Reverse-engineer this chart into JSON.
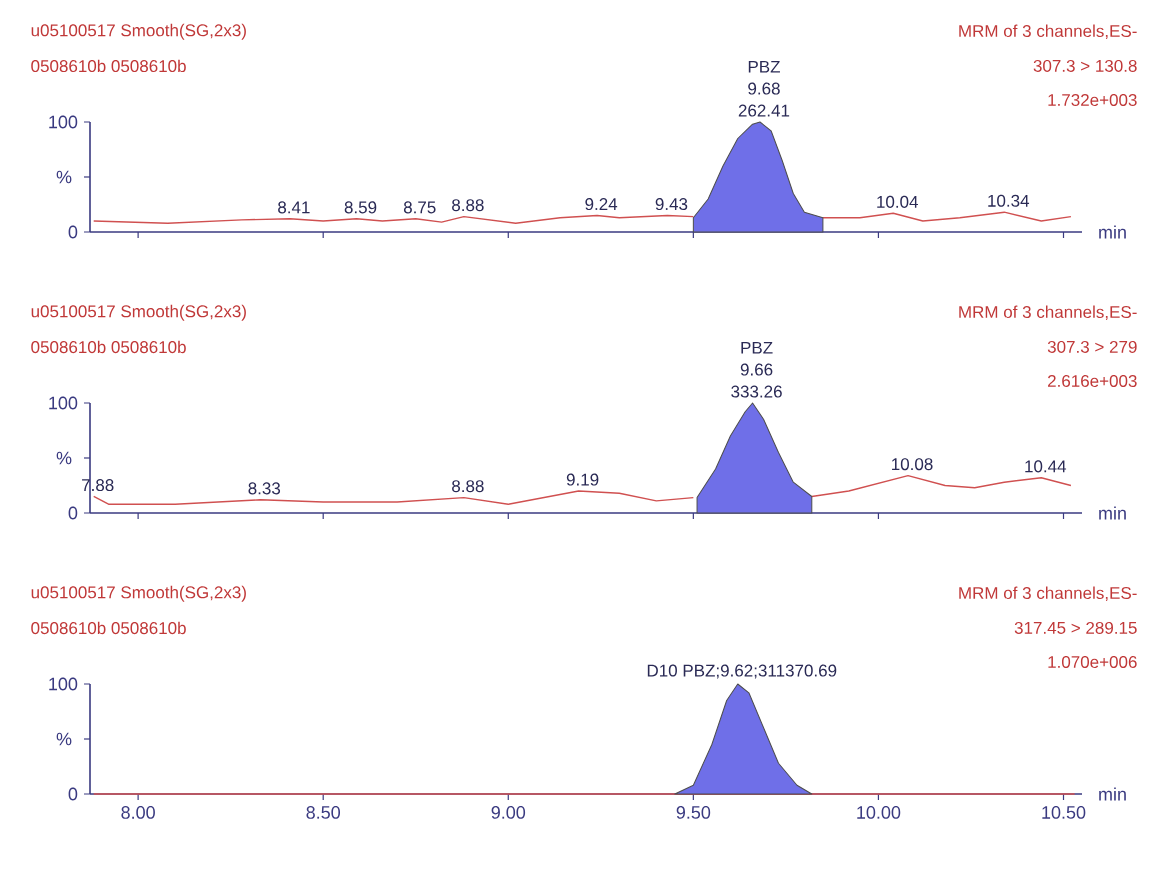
{
  "chart_data": [
    {
      "type": "line",
      "title": "u05100517  Smooth(SG,2x3)",
      "subtitle": "0508610b 0508610b",
      "xlabel": "min",
      "annotations": [
        "MRM of 3 channels,ES-",
        "307.3 > 130.8",
        "1.732e+003",
        {
          "text": "PBZ",
          "x": 9.68,
          "y": 100
        },
        {
          "text": "9.68",
          "x": 9.68,
          "y": 100
        },
        {
          "text": "262.41",
          "x": 9.68,
          "y": 100
        },
        {
          "text": "8.41",
          "x": 8.41,
          "y": 12
        },
        {
          "text": "8.59",
          "x": 8.59,
          "y": 12
        },
        {
          "text": "8.75",
          "x": 8.75,
          "y": 12
        },
        {
          "text": "8.88",
          "x": 8.88,
          "y": 14
        },
        {
          "text": "9.24",
          "x": 9.24,
          "y": 15
        },
        {
          "text": "9.43",
          "x": 9.43,
          "y": 15
        },
        {
          "text": "10.04",
          "x": 10.04,
          "y": 17
        },
        {
          "text": "10.34",
          "x": 10.34,
          "y": 18
        }
      ],
      "series": [
        {
          "type": "line",
          "color": "#d05050",
          "x": [
            7.88,
            8.08,
            8.28,
            8.41,
            8.5,
            8.59,
            8.66,
            8.75,
            8.82,
            8.88,
            9.02,
            9.14,
            9.24,
            9.3,
            9.43,
            9.5,
            9.6,
            9.75,
            9.85,
            9.95,
            10.04,
            10.12,
            10.22,
            10.34,
            10.44,
            10.52
          ],
          "values": [
            10,
            8,
            11,
            12,
            10,
            12,
            10,
            12,
            9,
            14,
            8,
            13,
            15,
            13,
            15,
            14,
            null,
            null,
            13,
            13,
            17,
            10,
            13,
            18,
            10,
            14
          ]
        },
        {
          "type": "area",
          "color": "#6f6fe8",
          "x": [
            9.5,
            9.54,
            9.58,
            9.62,
            9.66,
            9.68,
            9.71,
            9.74,
            9.77,
            9.8,
            9.85
          ],
          "values": [
            13,
            30,
            60,
            85,
            98,
            100,
            92,
            65,
            35,
            18,
            13
          ]
        }
      ],
      "xlim": [
        7.87,
        10.55
      ],
      "ylim": [
        0,
        100
      ],
      "xticks": [
        {
          "value": 8,
          "label": null
        },
        {
          "value": 8.5,
          "label": null
        },
        {
          "value": 9,
          "label": null
        },
        {
          "value": 9.5,
          "label": null
        },
        {
          "value": 10,
          "label": null
        },
        {
          "value": 10.5,
          "label": null
        }
      ],
      "yticks": [
        0,
        100
      ],
      "ylabel": "%",
      "tick_labels": "y"
    },
    {
      "type": "line",
      "title": "u05100517  Smooth(SG,2x3)",
      "subtitle": "0508610b 0508610b",
      "xlabel": "min",
      "annotations": [
        "MRM of 3 channels,ES-",
        "307.3 > 279",
        "2.616e+003",
        {
          "text": "PBZ",
          "x": 9.66,
          "y": 100
        },
        {
          "text": "9.66",
          "x": 9.66,
          "y": 100
        },
        {
          "text": "333.26",
          "x": 9.66,
          "y": 100
        },
        {
          "text": "7.88",
          "x": 7.88,
          "y": 15
        },
        {
          "text": "8.33",
          "x": 8.33,
          "y": 12
        },
        {
          "text": "8.88",
          "x": 8.88,
          "y": 14
        },
        {
          "text": "9.19",
          "x": 9.19,
          "y": 20
        },
        {
          "text": "10.08",
          "x": 10.08,
          "y": 34
        },
        {
          "text": "10.44",
          "x": 10.44,
          "y": 32
        }
      ],
      "series": [
        {
          "type": "line",
          "color": "#d05050",
          "x": [
            7.88,
            7.92,
            8.1,
            8.33,
            8.5,
            8.7,
            8.88,
            9.0,
            9.19,
            9.3,
            9.4,
            9.5,
            9.6,
            9.75,
            9.82,
            9.92,
            10.08,
            10.18,
            10.26,
            10.34,
            10.44,
            10.52
          ],
          "values": [
            15,
            8,
            8,
            12,
            10,
            10,
            14,
            8,
            20,
            18,
            11,
            14,
            null,
            null,
            15,
            20,
            34,
            25,
            23,
            28,
            32,
            25
          ]
        },
        {
          "type": "area",
          "color": "#6f6fe8",
          "x": [
            9.51,
            9.56,
            9.6,
            9.64,
            9.66,
            9.69,
            9.73,
            9.77,
            9.82
          ],
          "values": [
            14,
            40,
            70,
            92,
            100,
            85,
            55,
            28,
            15
          ]
        }
      ],
      "xlim": [
        7.87,
        10.55
      ],
      "ylim": [
        0,
        100
      ],
      "xticks": [
        {
          "value": 8,
          "label": null
        },
        {
          "value": 8.5,
          "label": null
        },
        {
          "value": 9,
          "label": null
        },
        {
          "value": 9.5,
          "label": null
        },
        {
          "value": 10,
          "label": null
        },
        {
          "value": 10.5,
          "label": null
        }
      ],
      "yticks": [
        0,
        100
      ],
      "ylabel": "%",
      "tick_labels": "y"
    },
    {
      "type": "line",
      "title": "u05100517  Smooth(SG,2x3)",
      "subtitle": "0508610b 0508610b",
      "xlabel": "min",
      "annotations": [
        "MRM of 3 channels,ES-",
        "317.45 > 289.15",
        "1.070e+006",
        {
          "text": "D10 PBZ;9.62;311370.69",
          "x": 9.62,
          "y": 100
        }
      ],
      "series": [
        {
          "type": "line",
          "color": "#d05050",
          "x": [
            7.88,
            9.0,
            10.0,
            10.53
          ],
          "values": [
            0,
            0,
            0,
            0
          ]
        },
        {
          "type": "area",
          "color": "#6f6fe8",
          "x": [
            9.45,
            9.5,
            9.55,
            9.59,
            9.62,
            9.65,
            9.69,
            9.73,
            9.78,
            9.82
          ],
          "values": [
            0,
            8,
            45,
            85,
            100,
            92,
            60,
            28,
            8,
            0
          ]
        }
      ],
      "xlim": [
        7.87,
        10.55
      ],
      "ylim": [
        0,
        100
      ],
      "xticks": [
        {
          "value": 8,
          "label": "8.00"
        },
        {
          "value": 8.5,
          "label": "8.50"
        },
        {
          "value": 9,
          "label": "9.00"
        },
        {
          "value": 9.5,
          "label": "9.50"
        },
        {
          "value": 10,
          "label": "10.00"
        },
        {
          "value": 10.5,
          "label": "10.50"
        }
      ],
      "yticks": [
        0,
        100
      ],
      "ylabel": "%"
    }
  ]
}
